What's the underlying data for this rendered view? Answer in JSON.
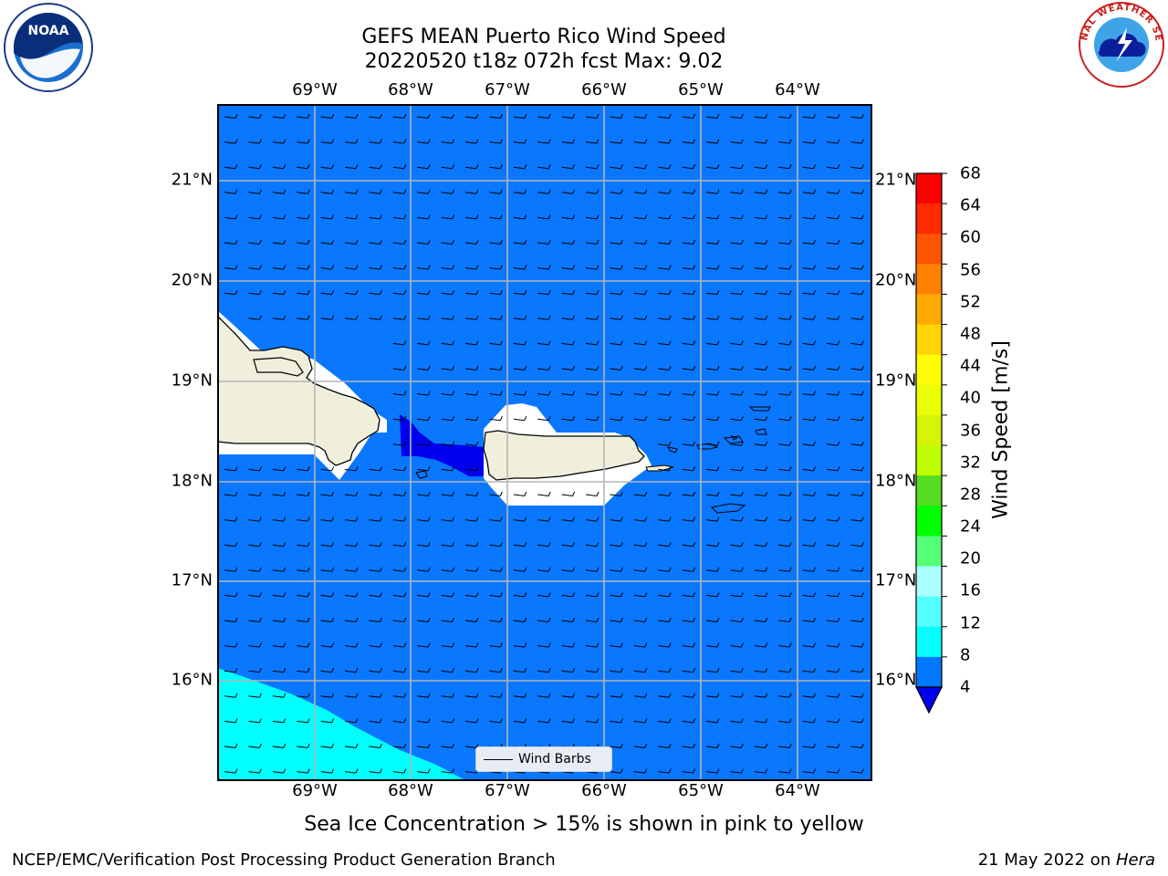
{
  "header": {
    "title_line1": "GEFS MEAN Puerto Rico Wind Speed",
    "title_line2": "20220520 t18z 072h fcst   Max: 9.02"
  },
  "axes": {
    "lon_ticks": [
      "69°W",
      "68°W",
      "67°W",
      "66°W",
      "65°W",
      "64°W"
    ],
    "lat_ticks": [
      "21°N",
      "20°N",
      "19°N",
      "18°N",
      "17°N",
      "16°N"
    ]
  },
  "legend": {
    "label": "Wind Barbs"
  },
  "colorbar": {
    "title": "Wind Speed [m/s]",
    "labels": [
      "68",
      "64",
      "60",
      "56",
      "52",
      "48",
      "44",
      "40",
      "36",
      "32",
      "28",
      "24",
      "20",
      "16",
      "12",
      "8",
      "4"
    ],
    "colors_top_to_bottom": [
      "#ff0000",
      "#ff2a00",
      "#ff5500",
      "#ff8000",
      "#ffaa00",
      "#ffd500",
      "#ffff00",
      "#eaff00",
      "#d5f500",
      "#bfff00",
      "#55dd22",
      "#00ff00",
      "#55ff77",
      "#aaffff",
      "#55ffff",
      "#00ffff",
      "#0077ff"
    ],
    "under_color": "#0000ee"
  },
  "chart_data": {
    "type": "map",
    "region": "Puerto Rico",
    "lon_range": [
      -70,
      -63.25
    ],
    "lat_range": [
      15,
      21.75
    ],
    "max_wind_speed": 9.02,
    "units": "m/s",
    "contour_levels": [
      4,
      8,
      12,
      16,
      20,
      24,
      28,
      32,
      36,
      40,
      44,
      48,
      52,
      56,
      60,
      64,
      68
    ],
    "grid": true
  },
  "footer": {
    "subtitle": "Sea Ice Concentration > 15% is shown in pink to yellow",
    "branch": "NCEP/EMC/Verification Post Processing Product Generation Branch",
    "date": "21 May 2022 on ",
    "machine": "Hera"
  },
  "logos": {
    "left": "NOAA",
    "right": "NATIONAL WEATHER SERVICE"
  }
}
